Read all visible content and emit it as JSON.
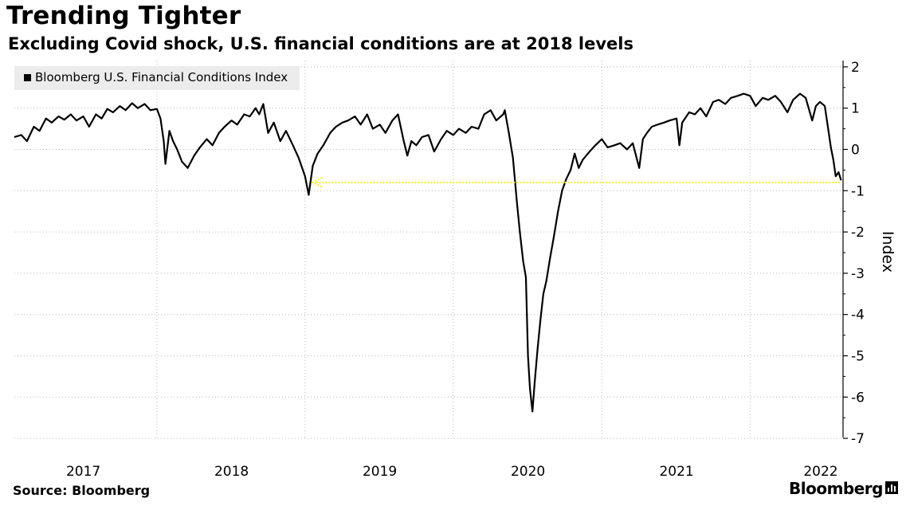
{
  "title": "Trending Tighter",
  "subtitle": "Excluding Covid shock, U.S. financial conditions are at 2018 levels",
  "source": "Source: Bloomberg",
  "brand": "Bloomberg",
  "icons": {
    "brand": "chart-bars-icon",
    "legend": "square-swatch-icon"
  },
  "colors": {
    "line": "#000000",
    "annotation": "#f3ee1e",
    "grid": "#b8b8b8",
    "legend_bg": "#ececec"
  },
  "chart_data": {
    "type": "line",
    "ylabel": "Index",
    "ylim": [
      -7,
      2
    ],
    "y_axis_position": "right",
    "yticks": [
      2,
      1,
      0,
      -1,
      -2,
      -3,
      -4,
      -5,
      -6,
      -7
    ],
    "ytick_labels": [
      "2",
      "1",
      "0",
      "-1",
      "-2",
      "-3",
      "-4",
      "-5",
      "-6",
      "-7"
    ],
    "xlim": [
      "2016-07-15",
      "2022-02-15"
    ],
    "xtick_labels": [
      "2017",
      "2018",
      "2019",
      "2020",
      "2021",
      "2022"
    ],
    "xtick_label_dates": [
      "2017-01-01",
      "2018-01-01",
      "2019-01-01",
      "2020-01-01",
      "2021-01-01",
      "2022-01-01"
    ],
    "gridline_dates": [
      "2017-07-01",
      "2018-07-01",
      "2019-07-01",
      "2020-07-01",
      "2021-07-01"
    ],
    "grid": true,
    "legend_position": "top-left",
    "series": [
      {
        "name": "Bloomberg U.S. Financial Conditions Index",
        "points": [
          [
            "2016-07-15",
            0.3
          ],
          [
            "2016-08-01",
            0.35
          ],
          [
            "2016-08-15",
            0.2
          ],
          [
            "2016-09-01",
            0.55
          ],
          [
            "2016-09-15",
            0.45
          ],
          [
            "2016-10-01",
            0.75
          ],
          [
            "2016-10-15",
            0.65
          ],
          [
            "2016-11-01",
            0.8
          ],
          [
            "2016-11-15",
            0.72
          ],
          [
            "2016-12-01",
            0.85
          ],
          [
            "2016-12-15",
            0.7
          ],
          [
            "2017-01-01",
            0.8
          ],
          [
            "2017-01-15",
            0.55
          ],
          [
            "2017-02-01",
            0.85
          ],
          [
            "2017-02-15",
            0.75
          ],
          [
            "2017-03-01",
            0.98
          ],
          [
            "2017-03-15",
            0.9
          ],
          [
            "2017-04-01",
            1.05
          ],
          [
            "2017-04-15",
            0.95
          ],
          [
            "2017-05-01",
            1.12
          ],
          [
            "2017-05-15",
            1.0
          ],
          [
            "2017-06-01",
            1.1
          ],
          [
            "2017-06-15",
            0.95
          ],
          [
            "2017-07-01",
            0.98
          ],
          [
            "2017-07-10",
            0.75
          ],
          [
            "2017-07-18",
            0.2
          ],
          [
            "2017-07-22",
            -0.35
          ],
          [
            "2017-08-01",
            0.45
          ],
          [
            "2017-08-10",
            0.2
          ],
          [
            "2017-08-20",
            0.0
          ],
          [
            "2017-09-01",
            -0.3
          ],
          [
            "2017-09-15",
            -0.45
          ],
          [
            "2017-10-01",
            -0.15
          ],
          [
            "2017-10-15",
            0.05
          ],
          [
            "2017-11-01",
            0.25
          ],
          [
            "2017-11-15",
            0.1
          ],
          [
            "2017-12-01",
            0.4
          ],
          [
            "2017-12-15",
            0.55
          ],
          [
            "2018-01-01",
            0.7
          ],
          [
            "2018-01-15",
            0.6
          ],
          [
            "2018-02-01",
            0.85
          ],
          [
            "2018-02-15",
            0.8
          ],
          [
            "2018-03-01",
            1.0
          ],
          [
            "2018-03-10",
            0.85
          ],
          [
            "2018-03-20",
            1.1
          ],
          [
            "2018-04-01",
            0.4
          ],
          [
            "2018-04-15",
            0.65
          ],
          [
            "2018-05-01",
            0.2
          ],
          [
            "2018-05-15",
            0.45
          ],
          [
            "2018-06-01",
            0.1
          ],
          [
            "2018-06-15",
            -0.2
          ],
          [
            "2018-07-01",
            -0.65
          ],
          [
            "2018-07-10",
            -1.1
          ],
          [
            "2018-07-20",
            -0.4
          ],
          [
            "2018-08-01",
            -0.1
          ],
          [
            "2018-08-15",
            0.1
          ],
          [
            "2018-09-01",
            0.4
          ],
          [
            "2018-09-15",
            0.55
          ],
          [
            "2018-10-01",
            0.65
          ],
          [
            "2018-10-15",
            0.7
          ],
          [
            "2018-11-01",
            0.8
          ],
          [
            "2018-11-15",
            0.6
          ],
          [
            "2018-12-01",
            0.85
          ],
          [
            "2018-12-15",
            0.5
          ],
          [
            "2019-01-01",
            0.6
          ],
          [
            "2019-01-15",
            0.4
          ],
          [
            "2019-02-01",
            0.7
          ],
          [
            "2019-02-15",
            0.85
          ],
          [
            "2019-03-01",
            0.2
          ],
          [
            "2019-03-10",
            -0.15
          ],
          [
            "2019-03-20",
            0.2
          ],
          [
            "2019-04-01",
            0.1
          ],
          [
            "2019-04-15",
            0.3
          ],
          [
            "2019-05-01",
            0.35
          ],
          [
            "2019-05-15",
            -0.05
          ],
          [
            "2019-06-01",
            0.25
          ],
          [
            "2019-06-15",
            0.45
          ],
          [
            "2019-07-01",
            0.35
          ],
          [
            "2019-07-15",
            0.5
          ],
          [
            "2019-08-01",
            0.4
          ],
          [
            "2019-08-15",
            0.55
          ],
          [
            "2019-09-01",
            0.5
          ],
          [
            "2019-09-15",
            0.85
          ],
          [
            "2019-10-01",
            0.95
          ],
          [
            "2019-10-15",
            0.7
          ],
          [
            "2019-11-01",
            0.85
          ],
          [
            "2019-11-05",
            0.95
          ],
          [
            "2019-11-15",
            0.4
          ],
          [
            "2019-11-25",
            -0.2
          ],
          [
            "2019-12-05",
            -1.3
          ],
          [
            "2019-12-12",
            -2.0
          ],
          [
            "2019-12-20",
            -2.7
          ],
          [
            "2019-12-27",
            -3.1
          ],
          [
            "2020-01-01",
            -5.0
          ],
          [
            "2020-01-06",
            -5.8
          ],
          [
            "2020-01-12",
            -6.35
          ],
          [
            "2020-01-18",
            -5.6
          ],
          [
            "2020-01-25",
            -4.8
          ],
          [
            "2020-02-01",
            -4.1
          ],
          [
            "2020-02-08",
            -3.5
          ],
          [
            "2020-02-15",
            -3.2
          ],
          [
            "2020-02-25",
            -2.6
          ],
          [
            "2020-03-05",
            -2.1
          ],
          [
            "2020-03-15",
            -1.5
          ],
          [
            "2020-03-25",
            -1.0
          ],
          [
            "2020-04-05",
            -0.7
          ],
          [
            "2020-04-15",
            -0.5
          ],
          [
            "2020-04-25",
            -0.1
          ],
          [
            "2020-05-05",
            -0.45
          ],
          [
            "2020-05-15",
            -0.25
          ],
          [
            "2020-06-01",
            -0.05
          ],
          [
            "2020-06-15",
            0.1
          ],
          [
            "2020-07-01",
            0.25
          ],
          [
            "2020-07-15",
            0.05
          ],
          [
            "2020-08-01",
            0.1
          ],
          [
            "2020-08-15",
            0.15
          ],
          [
            "2020-09-01",
            0.0
          ],
          [
            "2020-09-15",
            0.15
          ],
          [
            "2020-10-01",
            -0.45
          ],
          [
            "2020-10-10",
            0.25
          ],
          [
            "2020-10-20",
            0.4
          ],
          [
            "2020-11-01",
            0.55
          ],
          [
            "2020-11-15",
            0.6
          ],
          [
            "2020-12-01",
            0.65
          ],
          [
            "2020-12-15",
            0.7
          ],
          [
            "2021-01-01",
            0.75
          ],
          [
            "2021-01-08",
            0.1
          ],
          [
            "2021-01-15",
            0.65
          ],
          [
            "2021-02-01",
            0.9
          ],
          [
            "2021-02-15",
            0.85
          ],
          [
            "2021-03-01",
            1.0
          ],
          [
            "2021-03-15",
            0.8
          ],
          [
            "2021-04-01",
            1.15
          ],
          [
            "2021-04-15",
            1.2
          ],
          [
            "2021-05-01",
            1.1
          ],
          [
            "2021-05-15",
            1.25
          ],
          [
            "2021-06-01",
            1.3
          ],
          [
            "2021-06-15",
            1.35
          ],
          [
            "2021-07-01",
            1.3
          ],
          [
            "2021-07-15",
            1.05
          ],
          [
            "2021-08-01",
            1.25
          ],
          [
            "2021-08-15",
            1.2
          ],
          [
            "2021-09-01",
            1.3
          ],
          [
            "2021-09-15",
            1.15
          ],
          [
            "2021-10-01",
            0.9
          ],
          [
            "2021-10-15",
            1.2
          ],
          [
            "2021-11-01",
            1.35
          ],
          [
            "2021-11-15",
            1.25
          ],
          [
            "2021-12-01",
            0.7
          ],
          [
            "2021-12-10",
            1.05
          ],
          [
            "2021-12-20",
            1.15
          ],
          [
            "2022-01-01",
            1.05
          ],
          [
            "2022-01-10",
            0.45
          ],
          [
            "2022-01-16",
            0.05
          ],
          [
            "2022-01-22",
            -0.25
          ],
          [
            "2022-01-28",
            -0.65
          ],
          [
            "2022-02-04",
            -0.55
          ],
          [
            "2022-02-10",
            -0.75
          ]
        ]
      }
    ],
    "annotation": {
      "type": "arrow",
      "y": -0.8,
      "x_from": "2022-02-08",
      "x_to": "2018-07-20",
      "color": "#f3ee1e"
    }
  }
}
